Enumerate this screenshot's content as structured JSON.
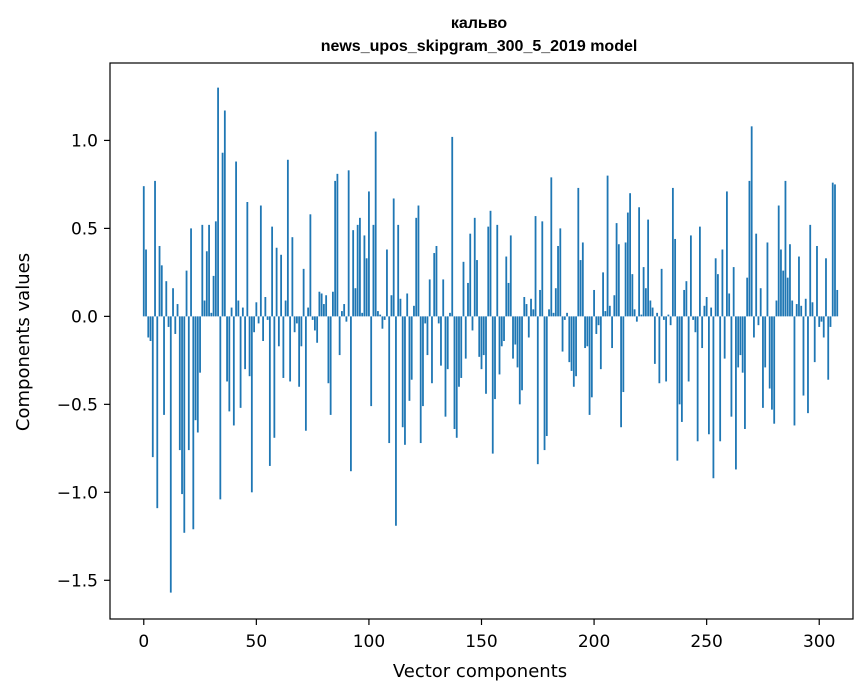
{
  "chart_data": {
    "type": "bar",
    "title_line1": "кальво",
    "title_line2": "news_upos_skipgram_300_5_2019 model",
    "xlabel": "Vector components",
    "ylabel": "Components values",
    "xlim": [
      -15,
      315
    ],
    "ylim": [
      -1.72,
      1.44
    ],
    "x_ticks": [
      0,
      50,
      100,
      150,
      200,
      250,
      300
    ],
    "x_tick_labels": [
      "0",
      "50",
      "100",
      "150",
      "200",
      "250",
      "300"
    ],
    "y_ticks": [
      1.0,
      0.5,
      0.0,
      -0.5,
      -1.0,
      -1.5
    ],
    "y_tick_labels": [
      "1.0",
      "0.5",
      "0.0",
      "−0.5",
      "−1.0",
      "−1.5"
    ],
    "bar_color": "#1f77b4",
    "values": [
      0.74,
      0.38,
      -0.12,
      -0.14,
      -0.8,
      0.77,
      -1.09,
      0.4,
      0.29,
      -0.56,
      0.2,
      -0.06,
      -1.57,
      0.16,
      -0.1,
      0.07,
      -0.76,
      -1.01,
      -1.23,
      0.26,
      -0.76,
      0.5,
      -1.21,
      -0.59,
      -0.66,
      -0.32,
      0.52,
      0.09,
      0.37,
      0.52,
      0.02,
      0.23,
      0.54,
      1.3,
      -1.04,
      0.93,
      1.17,
      -0.37,
      -0.54,
      0.05,
      -0.62,
      0.88,
      0.09,
      -0.52,
      0.05,
      -0.3,
      0.65,
      -0.34,
      -1.0,
      -0.09,
      0.08,
      -0.04,
      0.63,
      -0.14,
      0.11,
      -0.02,
      -0.85,
      0.51,
      -0.69,
      0.39,
      -0.17,
      0.35,
      -0.35,
      0.09,
      0.89,
      -0.37,
      0.45,
      -0.09,
      -0.04,
      -0.4,
      -0.17,
      0.27,
      -0.65,
      0.05,
      0.58,
      -0.02,
      -0.08,
      -0.15,
      0.14,
      0.13,
      0.07,
      0.12,
      -0.38,
      -0.56,
      0.14,
      0.77,
      0.81,
      -0.22,
      0.03,
      0.07,
      -0.03,
      0.83,
      -0.88,
      0.49,
      0.16,
      0.52,
      0.56,
      0.02,
      0.46,
      0.33,
      0.71,
      -0.51,
      0.52,
      1.05,
      0.03,
      0.01,
      -0.07,
      -0.02,
      0.38,
      -0.72,
      0.12,
      0.67,
      -1.19,
      0.52,
      0.1,
      -0.63,
      -0.73,
      0.13,
      -0.48,
      -0.36,
      0.06,
      0.56,
      0.63,
      -0.72,
      -0.51,
      -0.04,
      -0.22,
      0.21,
      -0.38,
      0.36,
      0.4,
      -0.04,
      -0.28,
      0.21,
      -0.57,
      -0.3,
      0.02,
      1.02,
      -0.64,
      -0.69,
      -0.4,
      -0.35,
      0.31,
      -0.24,
      0.19,
      0.47,
      -0.08,
      0.56,
      0.32,
      -0.23,
      -0.3,
      -0.22,
      -0.44,
      0.51,
      0.6,
      -0.78,
      -0.47,
      0.52,
      -0.33,
      -0.17,
      -0.14,
      0.34,
      0.19,
      0.46,
      -0.24,
      -0.16,
      -0.29,
      -0.5,
      -0.42,
      0.11,
      0.07,
      -0.12,
      0.1,
      0.04,
      0.57,
      -0.84,
      0.15,
      0.54,
      -0.76,
      -0.68,
      0.04,
      0.79,
      0.02,
      0.16,
      0.4,
      0.5,
      -0.2,
      -0.02,
      0.02,
      -0.26,
      -0.31,
      -0.4,
      -0.34,
      0.73,
      0.32,
      0.42,
      -0.18,
      -0.17,
      -0.56,
      -0.46,
      0.15,
      -0.1,
      -0.05,
      -0.3,
      0.25,
      0.03,
      0.8,
      0.06,
      -0.18,
      0.12,
      0.53,
      0.41,
      -0.63,
      -0.43,
      0.42,
      0.59,
      0.7,
      0.24,
      0.04,
      -0.03,
      0.62,
      0.01,
      0.28,
      0.16,
      0.55,
      0.09,
      0.05,
      -0.27,
      0.02,
      -0.38,
      0.27,
      -0.02,
      -0.37,
      0.01,
      -0.05,
      0.73,
      0.44,
      -0.82,
      -0.5,
      -0.6,
      0.15,
      0.2,
      -0.37,
      0.46,
      -0.02,
      -0.09,
      -0.71,
      0.51,
      -0.18,
      0.06,
      0.11,
      -0.67,
      0.05,
      -0.92,
      0.33,
      0.24,
      -0.71,
      0.38,
      -0.24,
      0.71,
      0.13,
      -0.57,
      0.28,
      -0.87,
      -0.29,
      -0.22,
      -0.32,
      -0.64,
      0.22,
      0.77,
      1.08,
      -0.12,
      0.47,
      -0.05,
      0.16,
      -0.52,
      -0.29,
      0.42,
      -0.41,
      -0.53,
      -0.61,
      0.09,
      0.63,
      0.38,
      0.26,
      0.77,
      0.22,
      0.41,
      0.09,
      -0.62,
      0.07,
      0.34,
      0.06,
      -0.45,
      0.1,
      -0.55,
      0.52,
      0.08,
      -0.26,
      0.4,
      -0.06,
      -0.03,
      -0.12,
      0.33,
      -0.36,
      -0.06,
      0.76,
      0.75,
      0.15
    ]
  }
}
